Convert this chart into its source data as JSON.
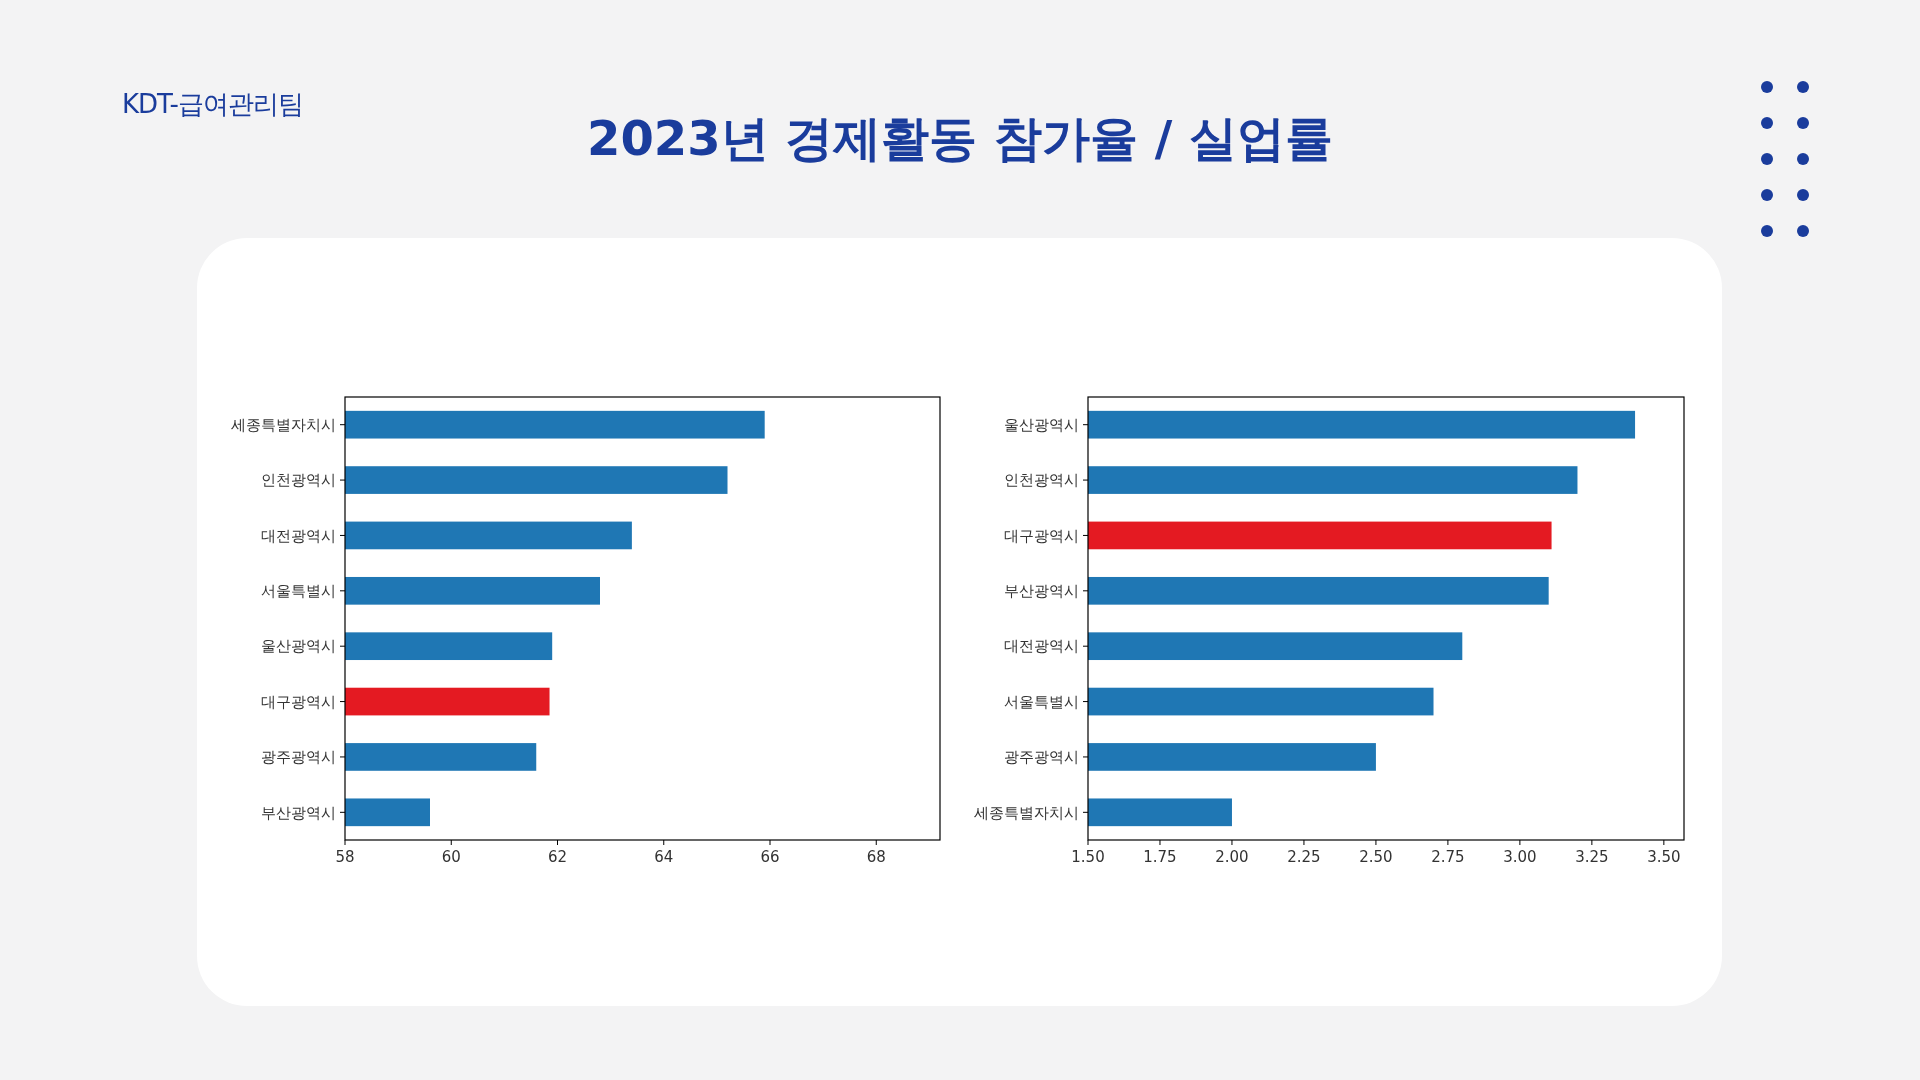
{
  "chart_data": [
    {
      "type": "bar",
      "orientation": "horizontal",
      "title": "2023년 경제활동 참가율 / 실업률",
      "annotations": [
        "KDT-급여관리팀"
      ],
      "categories": [
        "세종특별자치시",
        "인천광역시",
        "대전광역시",
        "서울특별시",
        "울산광역시",
        "대구광역시",
        "광주광역시",
        "부산광역시"
      ],
      "values": [
        65.9,
        65.2,
        63.4,
        62.8,
        61.9,
        61.85,
        61.6,
        59.6
      ],
      "colors": [
        "#1f77b4",
        "#1f77b4",
        "#1f77b4",
        "#1f77b4",
        "#1f77b4",
        "#e41a22",
        "#1f77b4",
        "#1f77b4"
      ],
      "xlim": [
        58,
        69.2
      ],
      "xticks": [
        58,
        60,
        62,
        64,
        66,
        68
      ]
    },
    {
      "type": "bar",
      "orientation": "horizontal",
      "categories": [
        "울산광역시",
        "인천광역시",
        "대구광역시",
        "부산광역시",
        "대전광역시",
        "서울특별시",
        "광주광역시",
        "세종특별자치시"
      ],
      "values": [
        3.4,
        3.2,
        3.11,
        3.1,
        2.8,
        2.7,
        2.5,
        2.0
      ],
      "colors": [
        "#1f77b4",
        "#1f77b4",
        "#e41a22",
        "#1f77b4",
        "#1f77b4",
        "#1f77b4",
        "#1f77b4",
        "#1f77b4"
      ],
      "xlim": [
        1.5,
        3.57
      ],
      "xticks": [
        {
          "value": 1.5,
          "label": "1.50"
        },
        {
          "value": 1.75,
          "label": "1.75"
        },
        {
          "value": 2.0,
          "label": "2.00"
        },
        {
          "value": 2.25,
          "label": "2.25"
        },
        {
          "value": 2.5,
          "label": "2.50"
        },
        {
          "value": 2.75,
          "label": "2.75"
        },
        {
          "value": 3.0,
          "label": "3.00"
        },
        {
          "value": 3.25,
          "label": "3.25"
        },
        {
          "value": 3.5,
          "label": "3.50"
        }
      ]
    }
  ]
}
